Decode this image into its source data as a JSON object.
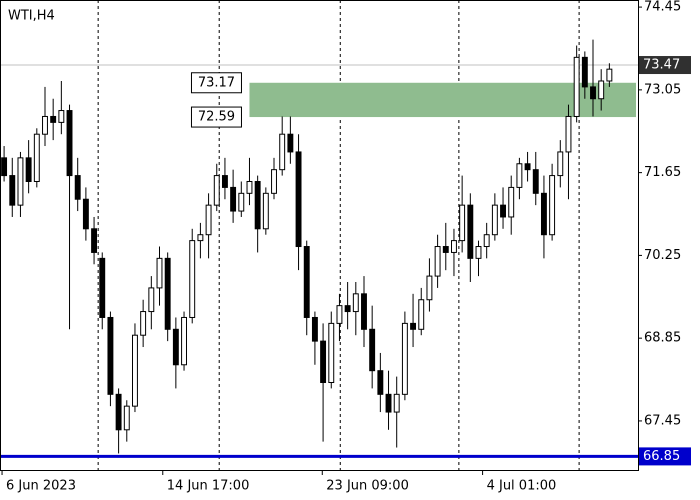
{
  "chart_data": {
    "type": "candlestick",
    "title": "WTI,H4",
    "xlim": [
      -0.5,
      77.5
    ],
    "xticks": [
      {
        "value": -0.25,
        "label": "6 Jun 2023"
      },
      {
        "value": 19.4,
        "label": "14 Jun 17:00"
      },
      {
        "value": 38.9,
        "label": "23 Jun 09:00"
      },
      {
        "value": 58.5,
        "label": "4 Jul 01:00"
      }
    ],
    "separators": [
      11.5,
      26.3,
      41.1,
      55.6,
      70.3
    ],
    "ylim": [
      66.62,
      74.57
    ],
    "yticks": [
      67.45,
      68.85,
      70.25,
      71.65,
      73.05,
      74.45
    ],
    "bull_color": "#ffffff",
    "bear_color": "#000000",
    "open": [
      71.9,
      71.6,
      71.1,
      71.9,
      71.5,
      72.3,
      72.6,
      72.5,
      72.7,
      71.6,
      71.2,
      70.7,
      70.2,
      69.2,
      67.9,
      67.3,
      67.7,
      68.9,
      69.3,
      69.7,
      70.2,
      69.0,
      68.4,
      69.2,
      70.5,
      70.6,
      71.1,
      71.6,
      71.4,
      71.0,
      71.3,
      71.5,
      70.7,
      71.3,
      71.7,
      72.3,
      72.0,
      70.4,
      69.2,
      68.8,
      68.1,
      69.1,
      69.4,
      69.3,
      69.6,
      69.0,
      68.3,
      67.9,
      67.6,
      67.9,
      69.1,
      69.0,
      69.5,
      69.9,
      70.4,
      70.3,
      70.5,
      71.1,
      70.2,
      70.4,
      70.6,
      71.1,
      70.9,
      71.4,
      71.8,
      71.7,
      71.3,
      70.6,
      71.6,
      72.0,
      72.6,
      73.6,
      73.1,
      72.9,
      73.2
    ],
    "high": [
      72.1,
      71.9,
      72.0,
      72.2,
      72.4,
      73.1,
      72.9,
      73.2,
      72.8,
      71.9,
      71.4,
      70.9,
      70.3,
      69.3,
      68.0,
      67.8,
      69.1,
      69.5,
      69.9,
      70.4,
      70.3,
      69.2,
      69.3,
      70.7,
      70.8,
      71.3,
      71.8,
      71.9,
      71.7,
      71.5,
      71.9,
      71.6,
      71.4,
      71.9,
      72.6,
      72.6,
      72.3,
      70.5,
      69.3,
      69.1,
      69.3,
      69.6,
      69.8,
      69.8,
      69.9,
      69.4,
      68.6,
      68.3,
      68.2,
      69.3,
      69.6,
      69.7,
      70.2,
      70.6,
      70.8,
      70.7,
      71.6,
      71.3,
      70.5,
      70.8,
      71.3,
      71.4,
      71.6,
      71.9,
      72.0,
      72.0,
      71.6,
      71.8,
      72.2,
      72.8,
      73.8,
      73.7,
      73.9,
      73.4,
      73.5
    ],
    "low": [
      71.5,
      70.9,
      70.9,
      71.3,
      71.4,
      72.1,
      72.2,
      72.3,
      69.0,
      71.0,
      70.5,
      70.1,
      69.0,
      67.7,
      66.9,
      67.1,
      67.6,
      68.7,
      69.0,
      69.4,
      68.8,
      68.0,
      68.3,
      69.1,
      70.2,
      70.2,
      71.0,
      71.2,
      70.8,
      70.9,
      71.1,
      70.3,
      70.6,
      71.2,
      71.6,
      71.8,
      70.0,
      68.9,
      68.4,
      67.1,
      68.0,
      68.8,
      69.0,
      68.9,
      68.7,
      68.0,
      67.6,
      67.3,
      67.0,
      67.8,
      68.7,
      68.9,
      69.3,
      69.7,
      70.0,
      69.9,
      70.3,
      69.8,
      69.9,
      70.2,
      70.5,
      70.7,
      70.6,
      71.2,
      71.5,
      71.1,
      70.2,
      70.5,
      71.4,
      71.2,
      72.5,
      72.9,
      72.6,
      72.7,
      73.1
    ],
    "close": [
      71.6,
      71.1,
      71.9,
      71.5,
      72.3,
      72.6,
      72.5,
      72.7,
      71.6,
      71.2,
      70.7,
      70.3,
      69.2,
      67.9,
      67.3,
      67.7,
      68.9,
      69.3,
      69.7,
      70.2,
      69.0,
      68.4,
      69.2,
      70.5,
      70.6,
      71.1,
      71.6,
      71.4,
      71.0,
      71.3,
      71.5,
      70.7,
      71.3,
      71.7,
      72.3,
      72.0,
      70.4,
      69.2,
      68.8,
      68.1,
      69.1,
      69.4,
      69.3,
      69.6,
      69.0,
      68.3,
      67.9,
      67.6,
      67.9,
      69.1,
      69.0,
      69.5,
      69.9,
      70.4,
      70.3,
      70.5,
      71.1,
      70.2,
      70.4,
      70.6,
      71.1,
      70.9,
      71.4,
      71.8,
      71.7,
      71.3,
      70.6,
      71.6,
      72.0,
      72.6,
      73.6,
      73.1,
      72.9,
      73.2,
      73.4
    ],
    "zone": {
      "top": 73.17,
      "bottom": 72.59,
      "start": 30,
      "color": "#8fbc8f"
    },
    "price_line": {
      "value": 73.47,
      "color": "#c0c0c0",
      "label_color": "#303030"
    },
    "support": {
      "value": 66.85,
      "color": "#0000cc"
    }
  }
}
